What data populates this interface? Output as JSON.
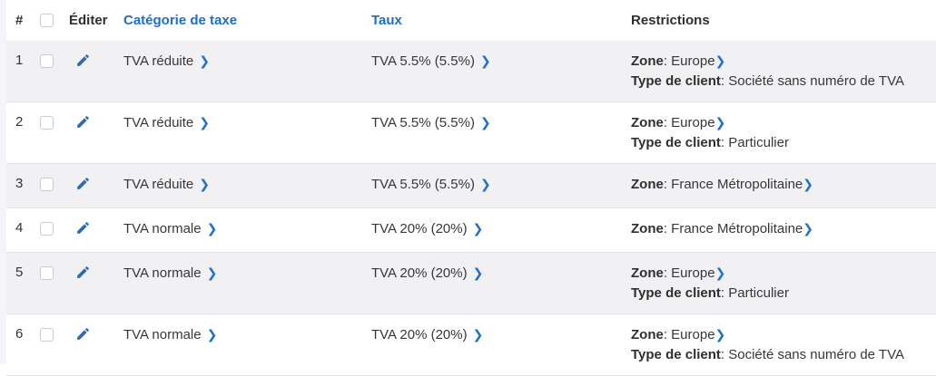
{
  "accent": {
    "link_blue": "#1f6dc4",
    "pencil_blue": "#2b6cb2",
    "chevron_blue": "#2270c8",
    "row_stripe": "#f1f1f3",
    "row_border": "#e2e3e7",
    "gutter": "#f3f5f9"
  },
  "icons": {
    "edit": "pencil-icon",
    "chevron_glyph": "❯"
  },
  "table": {
    "headers": {
      "number": "#",
      "edit": "Éditer",
      "category": "Catégorie de taxe",
      "rate": "Taux",
      "restrictions": "Restrictions"
    },
    "rows": [
      {
        "number": "1",
        "category": "TVA réduite",
        "rate": "TVA 5.5% (5.5%)",
        "restrictions": [
          {
            "label": "Zone",
            "value": "Europe",
            "chevron": true
          },
          {
            "label": "Type de client",
            "value": "Société sans numéro de TVA",
            "chevron": false
          }
        ]
      },
      {
        "number": "2",
        "category": "TVA réduite",
        "rate": "TVA 5.5% (5.5%)",
        "restrictions": [
          {
            "label": "Zone",
            "value": "Europe",
            "chevron": true
          },
          {
            "label": "Type de client",
            "value": "Particulier",
            "chevron": false
          }
        ]
      },
      {
        "number": "3",
        "category": "TVA réduite",
        "rate": "TVA 5.5% (5.5%)",
        "restrictions": [
          {
            "label": "Zone",
            "value": "France Métropolitaine",
            "chevron": true
          }
        ]
      },
      {
        "number": "4",
        "category": "TVA normale",
        "rate": "TVA 20% (20%)",
        "restrictions": [
          {
            "label": "Zone",
            "value": "France Métropolitaine",
            "chevron": true
          }
        ]
      },
      {
        "number": "5",
        "category": "TVA normale",
        "rate": "TVA 20% (20%)",
        "restrictions": [
          {
            "label": "Zone",
            "value": "Europe",
            "chevron": true
          },
          {
            "label": "Type de client",
            "value": "Particulier",
            "chevron": false
          }
        ]
      },
      {
        "number": "6",
        "category": "TVA normale",
        "rate": "TVA 20% (20%)",
        "restrictions": [
          {
            "label": "Zone",
            "value": "Europe",
            "chevron": true
          },
          {
            "label": "Type de client",
            "value": "Société sans numéro de TVA",
            "chevron": false
          }
        ]
      }
    ]
  }
}
